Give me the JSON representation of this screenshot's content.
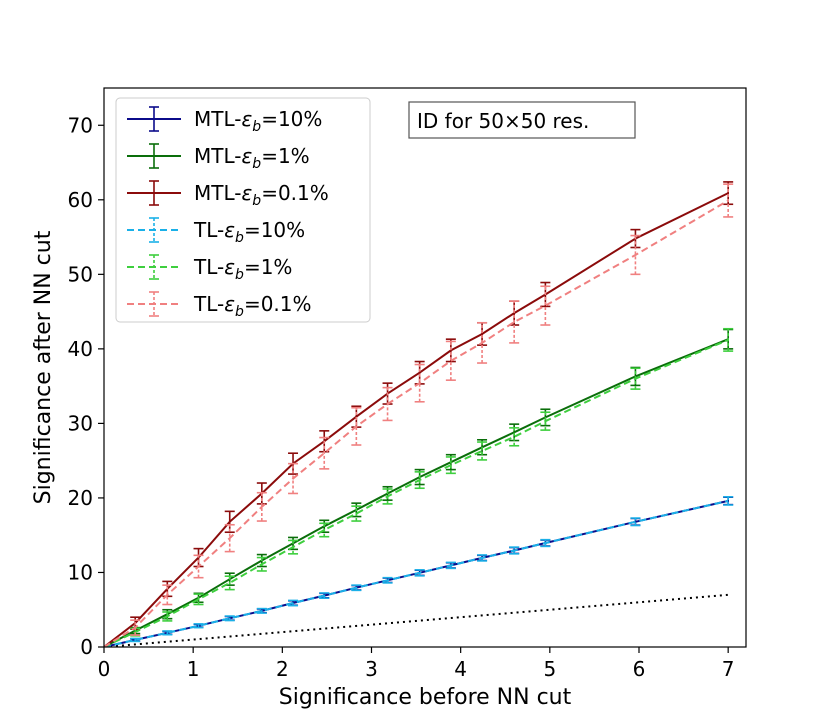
{
  "chart_data": {
    "type": "line",
    "title": "",
    "xlabel": "Significance before NN cut",
    "ylabel": "Significance after NN cut",
    "xlim": [
      0,
      7.2
    ],
    "ylim": [
      0,
      75
    ],
    "xticks": [
      0,
      1,
      2,
      3,
      4,
      5,
      6,
      7
    ],
    "yticks": [
      0,
      10,
      20,
      30,
      40,
      50,
      60,
      70
    ],
    "grid": false,
    "legend_position": "top-left",
    "annotation": "ID for 50×50 res.",
    "x": [
      0,
      0.35,
      0.71,
      1.06,
      1.41,
      1.77,
      2.12,
      2.47,
      2.83,
      3.18,
      3.54,
      3.89,
      4.24,
      4.6,
      4.95,
      5.96,
      7.0
    ],
    "reference_line": {
      "style": "dotted",
      "color": "#000000",
      "x": [
        0,
        7.0
      ],
      "y": [
        0,
        7.0
      ]
    },
    "series": [
      {
        "name": "MTL-εb=10%",
        "color": "#0b0b8a",
        "dashed": false,
        "values": [
          0,
          0.95,
          1.9,
          2.85,
          3.85,
          4.85,
          5.9,
          6.9,
          7.95,
          8.95,
          9.95,
          10.95,
          11.95,
          12.95,
          13.95,
          16.8,
          19.6
        ],
        "errors": [
          0,
          0.15,
          0.2,
          0.2,
          0.25,
          0.25,
          0.3,
          0.3,
          0.3,
          0.3,
          0.35,
          0.35,
          0.35,
          0.4,
          0.4,
          0.45,
          0.5
        ]
      },
      {
        "name": "MTL-εb=1%",
        "color": "#0a6e0a",
        "dashed": false,
        "values": [
          0,
          2.2,
          4.4,
          6.6,
          9.1,
          11.6,
          13.9,
          16.2,
          18.4,
          20.6,
          22.8,
          24.8,
          26.8,
          28.8,
          30.8,
          36.3,
          41.3
        ],
        "errors": [
          0,
          0.4,
          0.6,
          0.6,
          0.8,
          0.8,
          0.8,
          0.8,
          0.9,
          0.9,
          1.0,
          1.0,
          1.0,
          1.1,
          1.1,
          1.2,
          1.3
        ]
      },
      {
        "name": "MTL-εb=0.1%",
        "color": "#8b0b0b",
        "dashed": false,
        "values": [
          0,
          3.2,
          7.8,
          12.0,
          16.8,
          20.6,
          24.6,
          27.6,
          30.9,
          34.0,
          36.8,
          39.8,
          42.0,
          44.8,
          47.3,
          54.8,
          60.9
        ],
        "errors": [
          0,
          0.8,
          1.0,
          1.2,
          1.4,
          1.4,
          1.4,
          1.4,
          1.4,
          1.4,
          1.5,
          1.5,
          1.5,
          1.6,
          1.6,
          1.2,
          1.5
        ]
      },
      {
        "name": "TL-εb=10%",
        "color": "#1ab0e8",
        "dashed": true,
        "values": [
          0,
          0.95,
          1.9,
          2.85,
          3.85,
          4.85,
          5.9,
          6.9,
          7.95,
          8.95,
          9.95,
          10.95,
          11.95,
          12.95,
          13.95,
          16.8,
          19.6
        ],
        "errors": [
          0,
          0.2,
          0.25,
          0.25,
          0.3,
          0.3,
          0.35,
          0.35,
          0.35,
          0.35,
          0.4,
          0.4,
          0.4,
          0.45,
          0.45,
          0.5,
          0.55
        ]
      },
      {
        "name": "TL-εb=1%",
        "color": "#3ecf3e",
        "dashed": true,
        "values": [
          0,
          2.0,
          4.1,
          6.4,
          8.6,
          11.1,
          13.4,
          15.7,
          17.9,
          20.2,
          22.4,
          24.4,
          26.3,
          28.2,
          30.3,
          36.0,
          41.2
        ],
        "errors": [
          0,
          0.5,
          0.6,
          0.7,
          0.9,
          0.9,
          0.9,
          0.9,
          1.0,
          1.0,
          1.1,
          1.1,
          1.2,
          1.2,
          1.2,
          1.4,
          1.5
        ]
      },
      {
        "name": "TL-εb=0.1%",
        "color": "#f08080",
        "dashed": true,
        "values": [
          0,
          2.6,
          7.0,
          10.8,
          14.6,
          18.8,
          22.6,
          26.0,
          29.6,
          32.6,
          35.4,
          38.4,
          40.8,
          43.6,
          45.8,
          52.6,
          59.9
        ],
        "errors": [
          0,
          1.0,
          1.3,
          1.5,
          1.8,
          1.9,
          2.0,
          2.1,
          2.5,
          2.2,
          2.5,
          2.6,
          2.7,
          2.8,
          2.6,
          2.6,
          2.2
        ]
      }
    ]
  }
}
